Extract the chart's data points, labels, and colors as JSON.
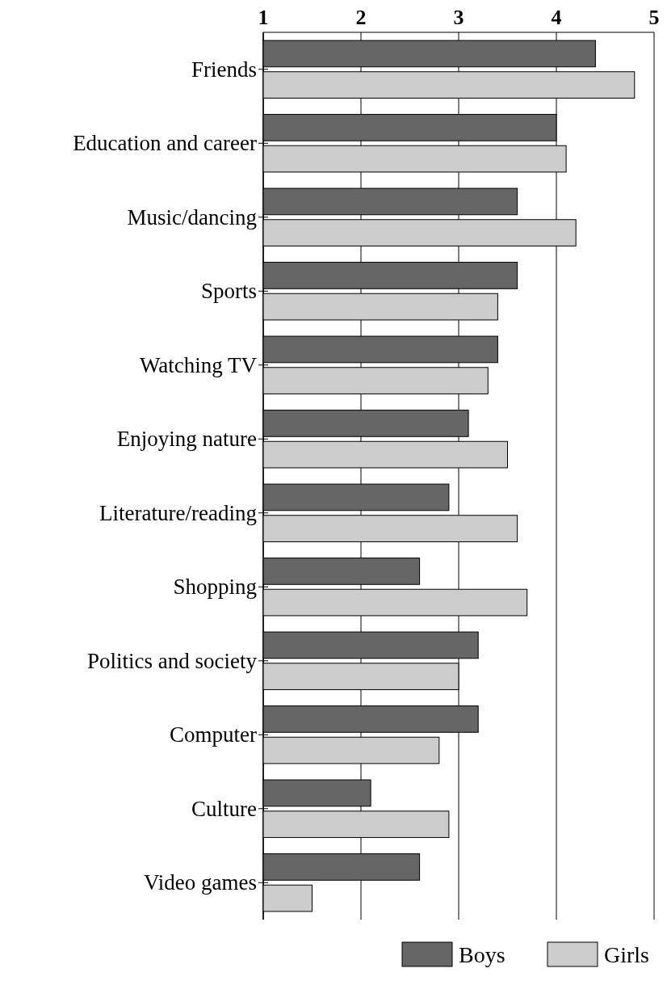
{
  "chart_data": {
    "type": "bar",
    "orientation": "horizontal",
    "categories": [
      "Friends",
      "Education and career",
      "Music/dancing",
      "Sports",
      "Watching TV",
      "Enjoying nature",
      "Literature/reading",
      "Shopping",
      "Politics and society",
      "Computer",
      "Culture",
      "Video games"
    ],
    "series": [
      {
        "name": "Boys",
        "color": "#666666",
        "values": [
          4.4,
          4.0,
          3.6,
          3.6,
          3.4,
          3.1,
          2.9,
          2.6,
          3.2,
          3.2,
          2.1,
          2.6
        ]
      },
      {
        "name": "Girls",
        "color": "#cccccc",
        "values": [
          4.8,
          4.1,
          4.2,
          3.4,
          3.3,
          3.5,
          3.6,
          3.7,
          3.0,
          2.8,
          2.9,
          1.5
        ]
      }
    ],
    "xlim": [
      1,
      5
    ],
    "xticks": [
      1,
      2,
      3,
      4,
      5
    ],
    "grid": "x",
    "legend": "bottom right"
  }
}
